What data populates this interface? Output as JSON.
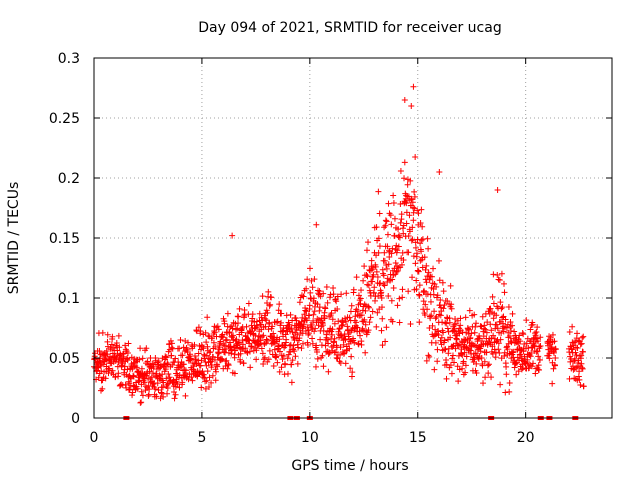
{
  "chart_data": {
    "type": "scatter",
    "title": "Day 094 of 2021, SRMTID for receiver ucag",
    "xlabel": "GPS time / hours",
    "ylabel": "SRMTID / TECUs",
    "xlim": [
      0,
      24
    ],
    "ylim": [
      0,
      0.3
    ],
    "x_ticks": [
      0,
      5,
      10,
      15,
      20
    ],
    "x_tick_labels": [
      "0",
      "5",
      "10",
      "15",
      "20"
    ],
    "y_ticks": [
      0,
      0.05,
      0.1,
      0.15,
      0.2,
      0.25,
      0.3
    ],
    "y_tick_labels": [
      "0",
      "0.05",
      "0.1",
      "0.15",
      "0.2",
      "0.25",
      "0.3"
    ],
    "grid": true,
    "marker": "+",
    "series_color": "#ff0000",
    "series": [
      {
        "name": "SRMTID",
        "envelope": [
          {
            "x": 0.0,
            "mean": 0.045,
            "spread": 0.02
          },
          {
            "x": 1.0,
            "mean": 0.048,
            "spread": 0.02
          },
          {
            "x": 2.0,
            "mean": 0.035,
            "spread": 0.02
          },
          {
            "x": 3.0,
            "mean": 0.035,
            "spread": 0.02
          },
          {
            "x": 4.0,
            "mean": 0.045,
            "spread": 0.02
          },
          {
            "x": 5.0,
            "mean": 0.05,
            "spread": 0.022
          },
          {
            "x": 6.0,
            "mean": 0.06,
            "spread": 0.025
          },
          {
            "x": 7.0,
            "mean": 0.07,
            "spread": 0.025
          },
          {
            "x": 8.0,
            "mean": 0.072,
            "spread": 0.025
          },
          {
            "x": 9.0,
            "mean": 0.06,
            "spread": 0.025
          },
          {
            "x": 10.0,
            "mean": 0.09,
            "spread": 0.03
          },
          {
            "x": 11.0,
            "mean": 0.075,
            "spread": 0.03
          },
          {
            "x": 12.0,
            "mean": 0.07,
            "spread": 0.03
          },
          {
            "x": 13.0,
            "mean": 0.12,
            "spread": 0.05
          },
          {
            "x": 14.0,
            "mean": 0.13,
            "spread": 0.06
          },
          {
            "x": 14.7,
            "mean": 0.16,
            "spread": 0.06
          },
          {
            "x": 15.5,
            "mean": 0.1,
            "spread": 0.04
          },
          {
            "x": 16.0,
            "mean": 0.08,
            "spread": 0.035
          },
          {
            "x": 17.0,
            "mean": 0.06,
            "spread": 0.025
          },
          {
            "x": 18.0,
            "mean": 0.06,
            "spread": 0.025
          },
          {
            "x": 18.7,
            "mean": 0.08,
            "spread": 0.04
          },
          {
            "x": 19.5,
            "mean": 0.055,
            "spread": 0.025
          },
          {
            "x": 20.5,
            "mean": 0.06,
            "spread": 0.02
          },
          {
            "x": 21.5,
            "mean": 0.05,
            "spread": 0.02
          },
          {
            "x": 22.5,
            "mean": 0.05,
            "spread": 0.02
          }
        ],
        "gaps": [
          [
            20.7,
            21.0
          ],
          [
            21.4,
            22.0
          ]
        ],
        "x_end": 22.7,
        "notable_points": [
          {
            "x": 14.8,
            "y": 0.276
          },
          {
            "x": 14.4,
            "y": 0.265
          },
          {
            "x": 14.7,
            "y": 0.26
          },
          {
            "x": 18.7,
            "y": 0.19
          },
          {
            "x": 6.4,
            "y": 0.152
          },
          {
            "x": 10.3,
            "y": 0.161
          },
          {
            "x": 16.0,
            "y": 0.205
          }
        ],
        "zero_values_x": [
          1.5,
          9.1,
          9.4,
          10.0,
          18.4,
          20.7,
          21.1,
          22.3
        ]
      }
    ]
  }
}
